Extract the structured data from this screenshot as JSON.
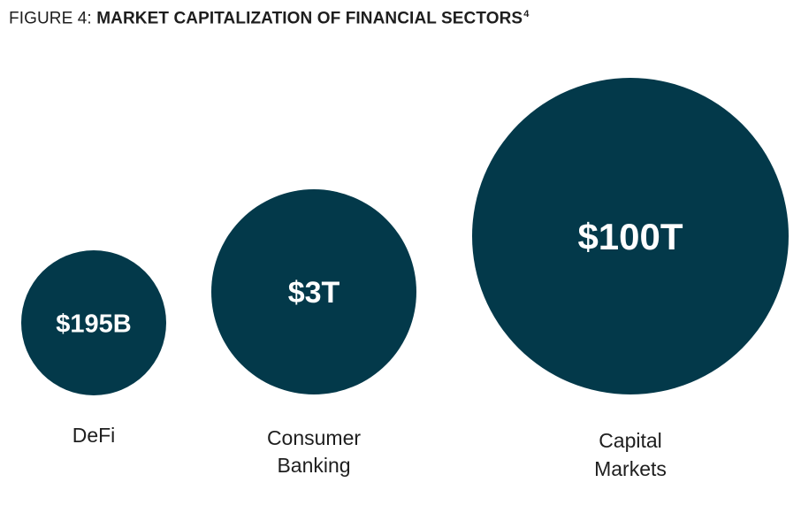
{
  "figure": {
    "prefix": "FIGURE 4:",
    "title": "MARKET CAPITALIZATION OF FINANCIAL SECTORS",
    "footnote": "4"
  },
  "chart_data": {
    "type": "bubble",
    "title": "MARKET CAPITALIZATION OF FINANCIAL SECTORS",
    "unit": "USD",
    "color": "#03394a",
    "series": [
      {
        "category": [
          "DeFi"
        ],
        "value_label": "$195B",
        "value": 195000000000
      },
      {
        "category": [
          "Consumer",
          "Banking"
        ],
        "value_label": "$3T",
        "value": 3000000000000
      },
      {
        "category": [
          "Capital",
          "Markets"
        ],
        "value_label": "$100T",
        "value": 100000000000000
      }
    ]
  }
}
